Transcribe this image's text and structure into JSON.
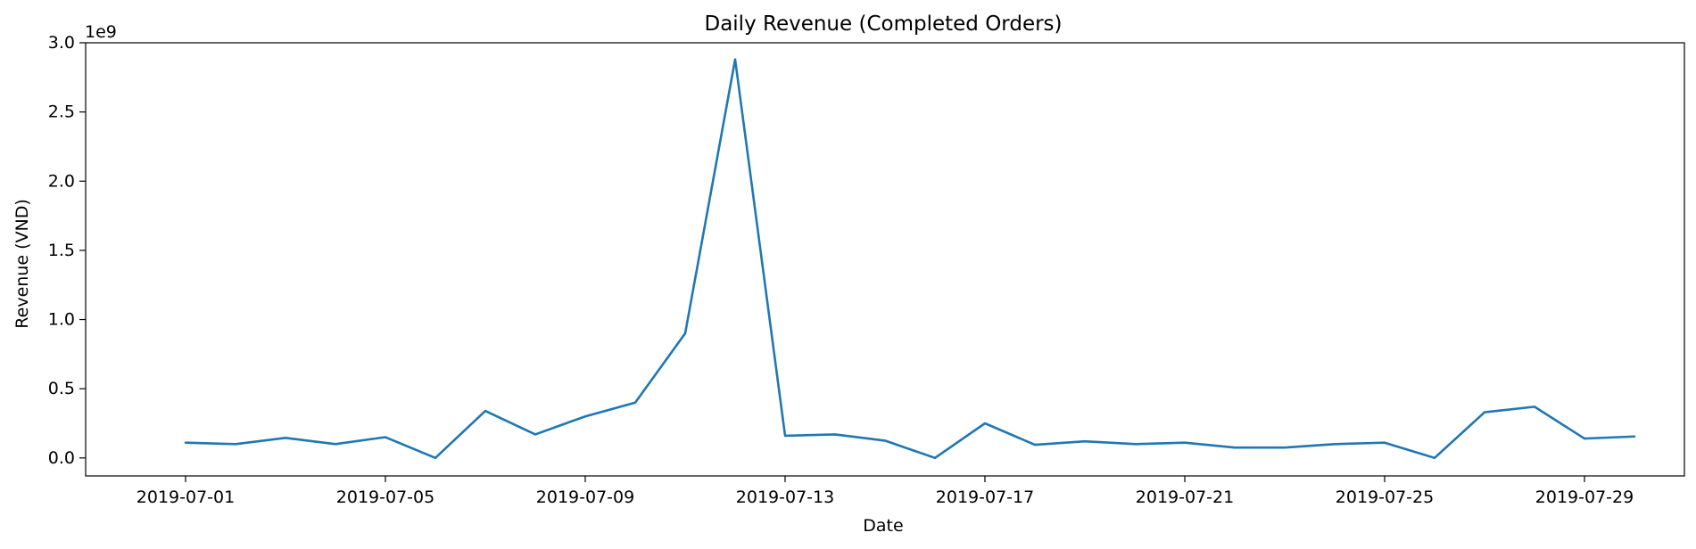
{
  "chart_data": {
    "type": "line",
    "title": "Daily Revenue (Completed Orders)",
    "xlabel": "Date",
    "ylabel": "Revenue (VND)",
    "y_offset_label": "1e9",
    "y_unit_scale": 1000000000,
    "ylim": [
      -0.13,
      3.0
    ],
    "xlim": [
      "2019-06-29",
      "2019-07-31"
    ],
    "grid": false,
    "line_color": "#1f77b4",
    "x_ticks": [
      "2019-07-01",
      "2019-07-05",
      "2019-07-09",
      "2019-07-13",
      "2019-07-17",
      "2019-07-21",
      "2019-07-25",
      "2019-07-29"
    ],
    "y_ticks": [
      0.0,
      0.5,
      1.0,
      1.5,
      2.0,
      2.5,
      3.0
    ],
    "y_tick_labels": [
      "0.0",
      "0.5",
      "1.0",
      "1.5",
      "2.0",
      "2.5",
      "3.0"
    ],
    "series": [
      {
        "x": [
          "2019-07-01",
          "2019-07-02",
          "2019-07-03",
          "2019-07-04",
          "2019-07-05",
          "2019-07-06",
          "2019-07-07",
          "2019-07-08",
          "2019-07-09",
          "2019-07-10",
          "2019-07-11",
          "2019-07-12",
          "2019-07-13",
          "2019-07-14",
          "2019-07-15",
          "2019-07-16",
          "2019-07-17",
          "2019-07-18",
          "2019-07-19",
          "2019-07-20",
          "2019-07-21",
          "2019-07-22",
          "2019-07-23",
          "2019-07-24",
          "2019-07-25",
          "2019-07-26",
          "2019-07-27",
          "2019-07-28",
          "2019-07-29",
          "2019-07-30"
        ],
        "values": [
          0.11,
          0.1,
          0.145,
          0.1,
          0.15,
          0.0,
          0.34,
          0.17,
          0.3,
          0.4,
          0.9,
          2.88,
          0.16,
          0.17,
          0.125,
          0.0,
          0.25,
          0.095,
          0.12,
          0.1,
          0.11,
          0.075,
          0.075,
          0.1,
          0.11,
          0.0,
          0.33,
          0.37,
          0.14,
          0.155
        ]
      }
    ]
  }
}
